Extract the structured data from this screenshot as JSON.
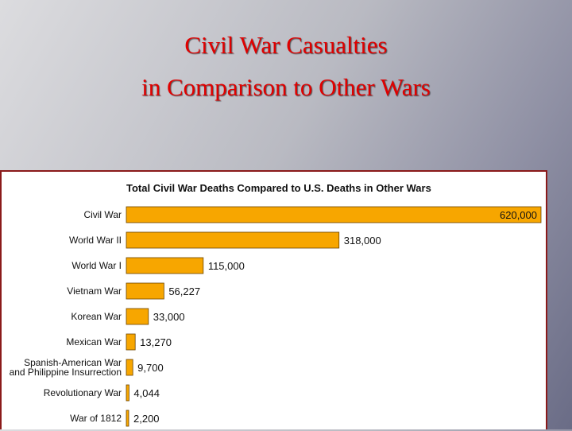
{
  "slide": {
    "title_line1": "Civil War Casualties",
    "title_line2": "in Comparison to Other Wars"
  },
  "colors": {
    "bar": "#f7a600",
    "bar_stroke": "#6b4400",
    "title": "#e00000",
    "panel_border": "#8b1a1a"
  },
  "chart_data": {
    "type": "bar",
    "orientation": "horizontal",
    "title": "Total Civil War Deaths Compared to U.S. Deaths in Other Wars",
    "categories": [
      "Civil War",
      "World War II",
      "World War I",
      "Vietnam War",
      "Korean War",
      "Mexican War",
      "Spanish-American War\nand Philippine Insurrection",
      "Revolutionary War",
      "War of 1812"
    ],
    "values": [
      620000,
      318000,
      115000,
      56227,
      33000,
      13270,
      9700,
      4044,
      2200
    ],
    "value_labels": [
      "620,000",
      "318,000",
      "115,000",
      "56,227",
      "33,000",
      "13,270",
      "9,700",
      "4,044",
      "2,200"
    ],
    "xlim": [
      0,
      620000
    ],
    "xlabel": "",
    "ylabel": "",
    "grid": false,
    "legend": "none"
  }
}
